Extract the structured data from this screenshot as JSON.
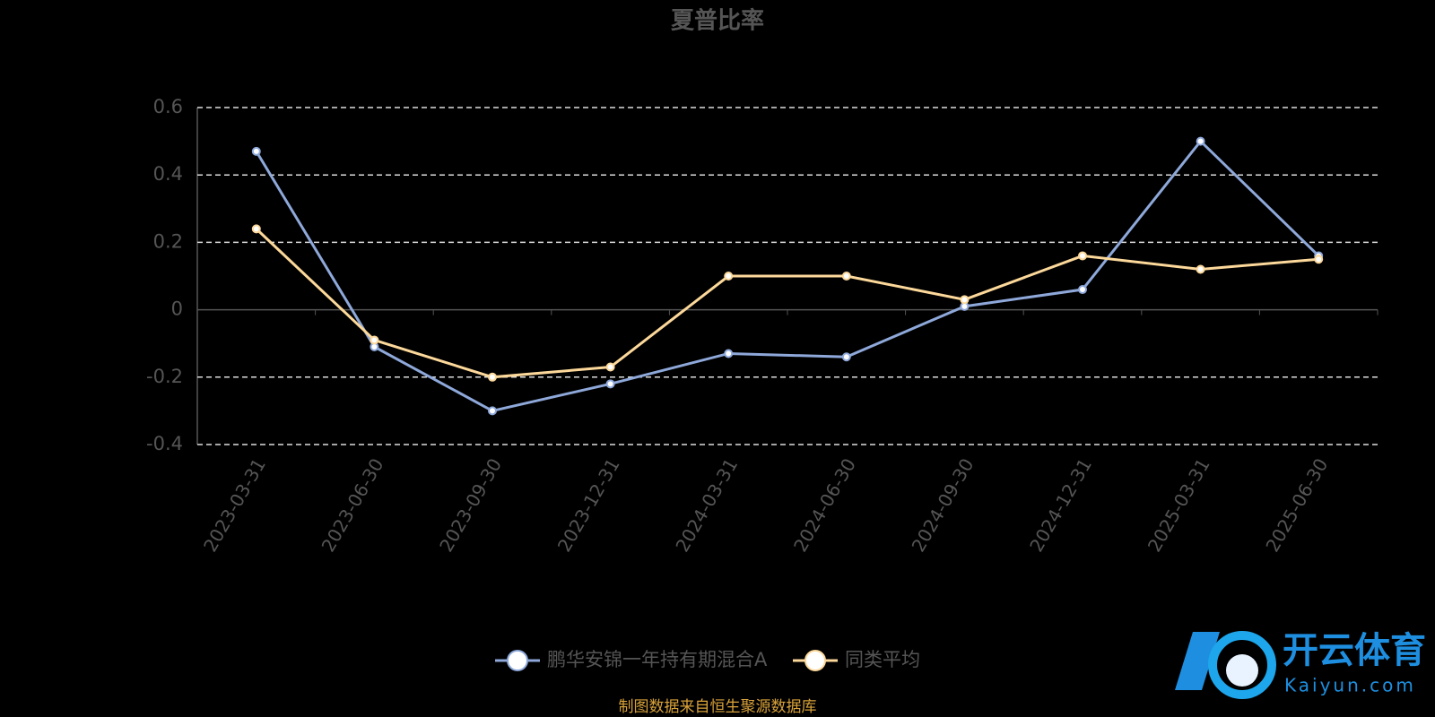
{
  "chart_data": {
    "type": "line",
    "title": "夏普比率",
    "categories": [
      "2023-03-31",
      "2023-06-30",
      "2023-09-30",
      "2023-12-31",
      "2024-03-31",
      "2024-06-30",
      "2024-09-30",
      "2024-12-31",
      "2025-03-31",
      "2025-06-30"
    ],
    "series": [
      {
        "name": "鹏华安锦一年持有期混合A",
        "color": "#8ea8da",
        "values": [
          0.47,
          -0.11,
          -0.3,
          -0.22,
          -0.13,
          -0.14,
          0.01,
          0.06,
          0.5,
          0.16
        ]
      },
      {
        "name": "同类平均",
        "color": "#fcd89a",
        "values": [
          0.24,
          -0.09,
          -0.2,
          -0.17,
          0.1,
          0.1,
          0.03,
          0.16,
          0.12,
          0.15
        ]
      }
    ],
    "ylim": [
      -0.4,
      0.6
    ],
    "yticks": [
      -0.4,
      -0.2,
      0,
      0.2,
      0.4,
      0.6
    ],
    "grid": true,
    "legend": "bottom"
  },
  "source": "制图数据来自恒生聚源数据库",
  "watermark": {
    "name": "开云体育",
    "domain": "Kaiyun.com"
  }
}
